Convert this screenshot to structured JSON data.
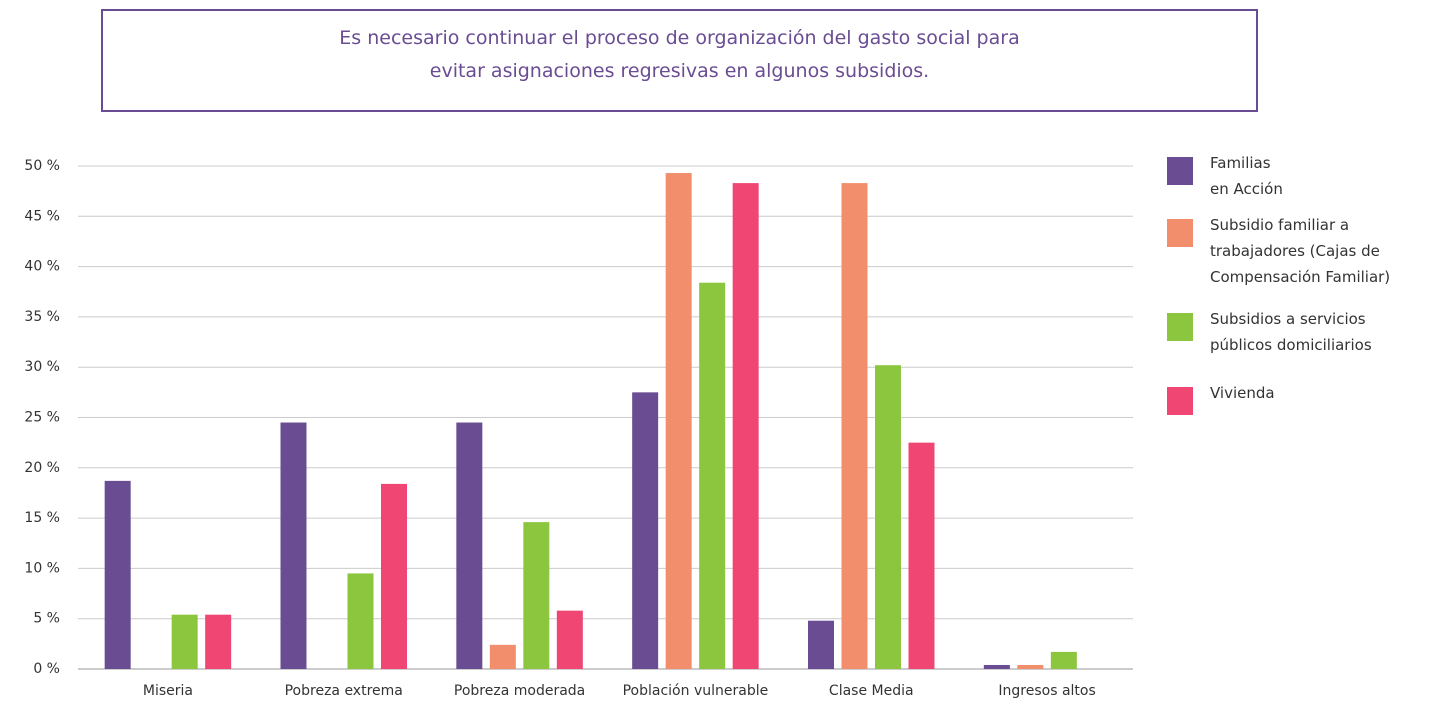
{
  "chart_data": {
    "type": "bar",
    "title": [
      "Es necesario continuar el proceso de organización del gasto social para",
      "evitar asignaciones regresivas en algunos subsidios."
    ],
    "categories": [
      "Miseria",
      "Pobreza extrema",
      "Pobreza moderada",
      "Población vulnerable",
      "Clase Media",
      "Ingresos altos"
    ],
    "series": [
      {
        "name": "Familias\nen Acción",
        "color": "#6a4c93",
        "values": [
          18.7,
          24.5,
          24.5,
          27.5,
          4.8,
          0.4
        ]
      },
      {
        "name": "Subsidio familiar a\ntrabajadores (Cajas de\nCompensación Familiar)",
        "color": "#f28e6b",
        "values": [
          0,
          0,
          2.4,
          49.3,
          48.3,
          0.4
        ]
      },
      {
        "name": "Subsidios a servicios\npúblicos domiciliarios",
        "color": "#8cc63f",
        "values": [
          5.4,
          9.5,
          14.6,
          38.4,
          30.2,
          1.7
        ]
      },
      {
        "name": "Vivienda",
        "color": "#ef4673",
        "values": [
          5.4,
          18.4,
          5.8,
          48.3,
          22.5,
          0
        ]
      }
    ],
    "ylim": [
      0,
      50
    ],
    "yticks": [
      {
        "value": 0,
        "label": "0 %"
      },
      {
        "value": 5,
        "label": "5 %"
      },
      {
        "value": 10,
        "label": "10 %"
      },
      {
        "value": 15,
        "label": "15 %"
      },
      {
        "value": 20,
        "label": "20 %"
      },
      {
        "value": 25,
        "label": "25 %"
      },
      {
        "value": 30,
        "label": "30 %"
      },
      {
        "value": 35,
        "label": "35 %"
      },
      {
        "value": 40,
        "label": "40 %"
      },
      {
        "value": 45,
        "label": "45 %"
      },
      {
        "value": 50,
        "label": "50 %"
      }
    ],
    "grid": true,
    "legend": "right"
  }
}
